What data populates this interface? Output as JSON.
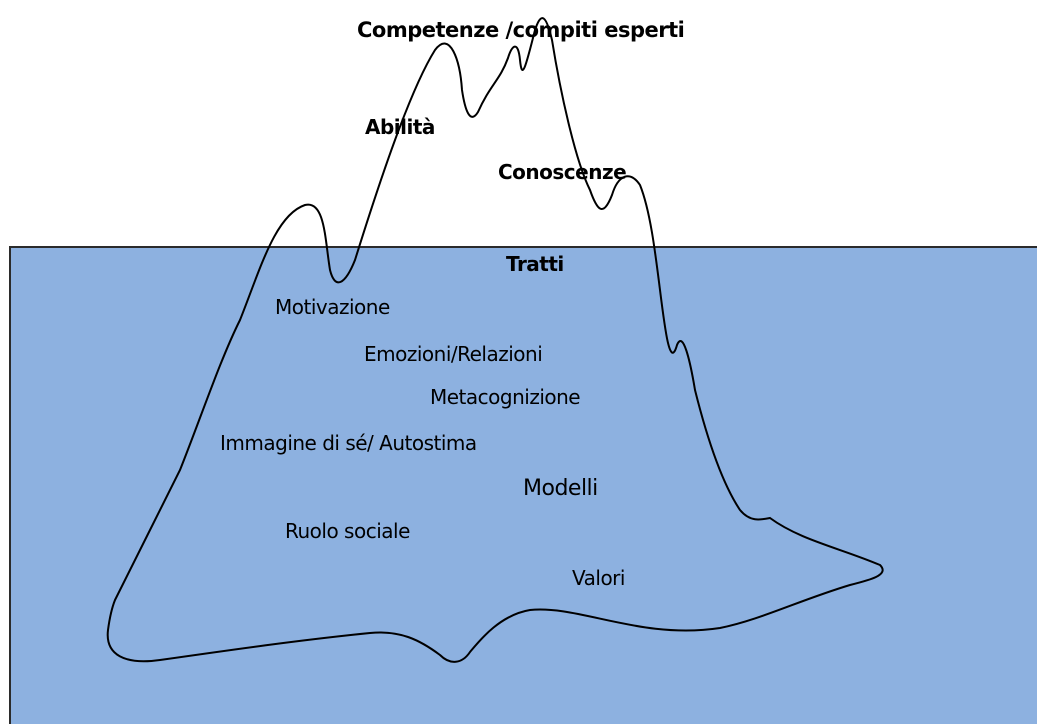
{
  "colors": {
    "water": "#8db1e0",
    "outline": "#000000",
    "sky": "#ffffff"
  },
  "above_water": {
    "competenze": "Competenze /compiti esperti",
    "abilita": "Abilità",
    "conoscenze": "Conoscenze"
  },
  "below_water": {
    "tratti": "Tratti",
    "motivazione": "Motivazione",
    "emozioni": "Emozioni/Relazioni",
    "metacognizione": "Metacognizione",
    "immagine": "Immagine di sé/ Autostima",
    "modelli": "Modelli",
    "ruolo": "Ruolo sociale",
    "valori": "Valori"
  }
}
